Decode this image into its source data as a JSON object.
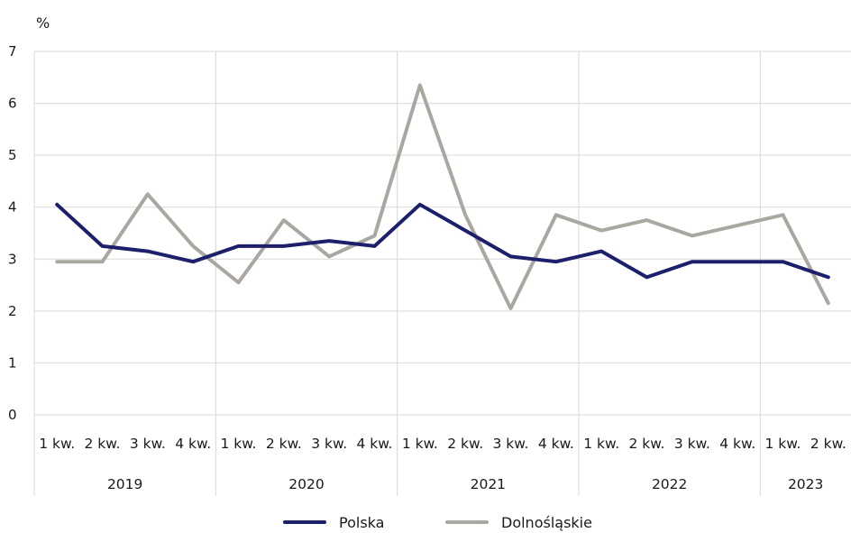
{
  "chart_data": {
    "type": "line",
    "title": "",
    "y_unit": "%",
    "ylim": [
      0,
      7
    ],
    "yticks": [
      0,
      1,
      2,
      3,
      4,
      5,
      6,
      7
    ],
    "grid": true,
    "legend_position": "bottom",
    "categories": [
      "1 kw.",
      "2 kw.",
      "3 kw.",
      "4 kw.",
      "1 kw.",
      "2 kw.",
      "3 kw.",
      "4 kw.",
      "1 kw.",
      "2 kw.",
      "3 kw.",
      "4 kw.",
      "1 kw.",
      "2 kw.",
      "3 kw.",
      "4 kw.",
      "1 kw.",
      "2 kw."
    ],
    "groups": [
      {
        "label": "2019",
        "count": 4
      },
      {
        "label": "2020",
        "count": 4
      },
      {
        "label": "2021",
        "count": 4
      },
      {
        "label": "2022",
        "count": 4
      },
      {
        "label": "2023",
        "count": 2
      }
    ],
    "series": [
      {
        "name": "Polska",
        "color": "#1c1f6b",
        "values": [
          4.05,
          3.25,
          3.15,
          2.95,
          3.25,
          3.25,
          3.35,
          3.25,
          4.05,
          3.55,
          3.05,
          2.95,
          3.15,
          2.65,
          2.95,
          2.95,
          2.95,
          2.65
        ]
      },
      {
        "name": "Dolnośląskie",
        "color": "#a9a7a0",
        "values": [
          2.95,
          2.95,
          4.25,
          3.25,
          2.55,
          3.75,
          3.05,
          3.45,
          6.35,
          3.85,
          2.05,
          3.85,
          3.55,
          3.75,
          3.45,
          3.65,
          3.85,
          2.15
        ]
      }
    ]
  }
}
